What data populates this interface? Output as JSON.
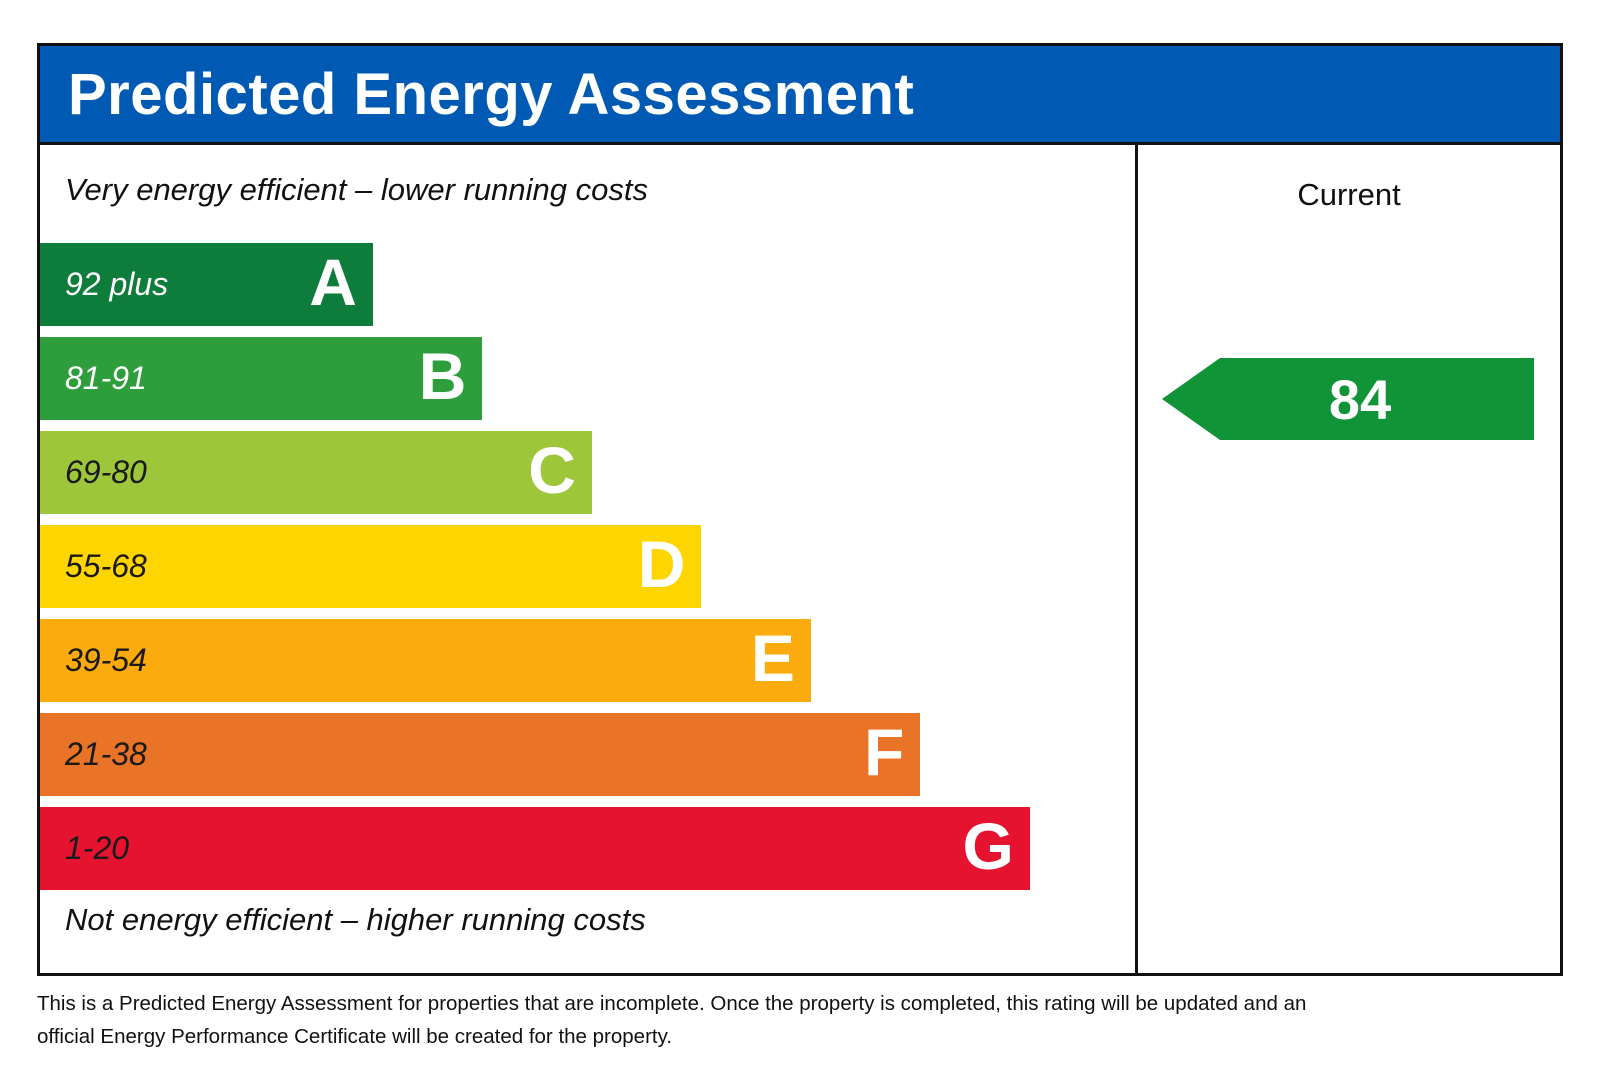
{
  "header": {
    "title": "Predicted Energy Assessment"
  },
  "colors": {
    "header_blue": "#0059b2",
    "border_black": "#111111"
  },
  "chart_data": {
    "type": "bar",
    "title": "Predicted Energy Assessment",
    "top_label": "Very energy efficient – lower running costs",
    "bottom_label": "Not energy efficient – higher running costs",
    "column_header": "Current",
    "bands": [
      {
        "grade": "A",
        "range": "92 plus",
        "min": 92,
        "max": 100,
        "color": "#0e7c3b",
        "range_text_color": "#ffffff",
        "width_pct": 30.4
      },
      {
        "grade": "B",
        "range": "81-91",
        "min": 81,
        "max": 91,
        "color": "#2e9e3c",
        "range_text_color": "#ffffff",
        "width_pct": 40.4
      },
      {
        "grade": "C",
        "range": "69-80",
        "min": 69,
        "max": 80,
        "color": "#9ec63b",
        "range_text_color": "#1a1a1a",
        "width_pct": 50.4
      },
      {
        "grade": "D",
        "range": "55-68",
        "min": 55,
        "max": 68,
        "color": "#ffd500",
        "range_text_color": "#1a1a1a",
        "width_pct": 60.4
      },
      {
        "grade": "E",
        "range": "39-54",
        "min": 39,
        "max": 54,
        "color": "#fbab0d",
        "range_text_color": "#1a1a1a",
        "width_pct": 70.4
      },
      {
        "grade": "F",
        "range": "21-38",
        "min": 21,
        "max": 38,
        "color": "#e97326",
        "range_text_color": "#1a1a1a",
        "width_pct": 80.4
      },
      {
        "grade": "G",
        "range": "1-20",
        "min": 1,
        "max": 20,
        "color": "#e5132f",
        "range_text_color": "#1a1a1a",
        "width_pct": 90.4
      }
    ],
    "ratings": [
      {
        "column": "Current",
        "value": "84",
        "grade": "B",
        "arrow_color": "#119338"
      }
    ]
  },
  "footer": {
    "text": "This is a Predicted Energy Assessment for properties that are incomplete. Once the property is completed, this rating will be updated and an official Energy Performance Certificate will be created for the property."
  }
}
